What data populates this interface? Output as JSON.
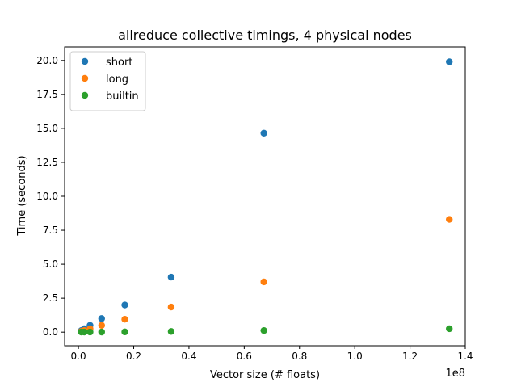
{
  "chart_data": {
    "type": "scatter",
    "title": "allreduce collective timings, 4 physical nodes",
    "xlabel": "Vector size (# floats)",
    "ylabel": "Time (seconds)",
    "x_offset_label": "1e8",
    "x_scale": 100000000,
    "xlim": [
      -5000000,
      140000000
    ],
    "ylim": [
      -1.0,
      21.0
    ],
    "x_ticks": [
      0,
      20000000,
      40000000,
      60000000,
      80000000,
      100000000,
      120000000,
      140000000
    ],
    "x_tick_labels": [
      "0.0",
      "0.2",
      "0.4",
      "0.6",
      "0.8",
      "1.0",
      "1.2",
      "1.4"
    ],
    "y_ticks": [
      0,
      2.5,
      5,
      7.5,
      10,
      12.5,
      15,
      17.5,
      20
    ],
    "y_tick_labels": [
      "0.0",
      "2.5",
      "5.0",
      "7.5",
      "10.0",
      "12.5",
      "15.0",
      "17.5",
      "20.0"
    ],
    "grid": false,
    "legend_position": "top-left",
    "series": [
      {
        "name": "short",
        "color": "#1f77b4",
        "points": [
          [
            1048576,
            0.12
          ],
          [
            2097152,
            0.25
          ],
          [
            4194304,
            0.5
          ],
          [
            8388608,
            1.0
          ],
          [
            16777216,
            2.0
          ],
          [
            33554432,
            4.05
          ],
          [
            67108864,
            14.65
          ],
          [
            134217728,
            19.9
          ]
        ]
      },
      {
        "name": "long",
        "color": "#ff7f0e",
        "points": [
          [
            1048576,
            0.06
          ],
          [
            2097152,
            0.12
          ],
          [
            4194304,
            0.25
          ],
          [
            8388608,
            0.5
          ],
          [
            16777216,
            0.95
          ],
          [
            33554432,
            1.85
          ],
          [
            67108864,
            3.7
          ],
          [
            134217728,
            8.3
          ]
        ]
      },
      {
        "name": "builtin",
        "color": "#2ca02c",
        "points": [
          [
            1048576,
            0.01
          ],
          [
            2097152,
            0.01
          ],
          [
            4194304,
            0.01
          ],
          [
            8388608,
            0.01
          ],
          [
            16777216,
            0.02
          ],
          [
            33554432,
            0.05
          ],
          [
            67108864,
            0.12
          ],
          [
            134217728,
            0.25
          ]
        ]
      }
    ]
  }
}
